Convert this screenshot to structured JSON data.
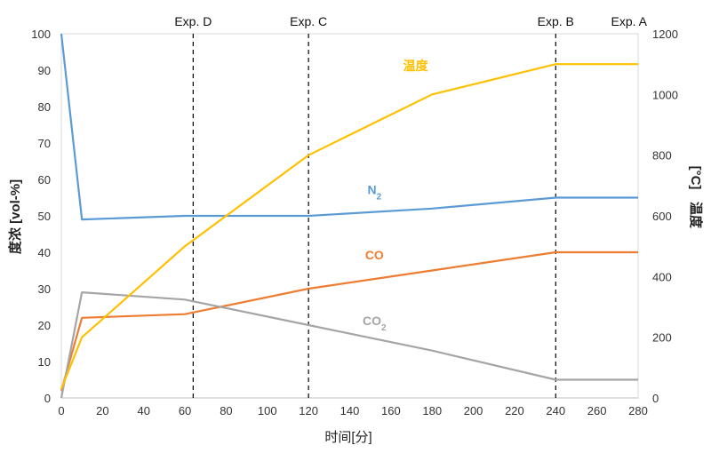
{
  "chart_data": {
    "type": "line",
    "xlabel": "时间[分]",
    "ylabel_left": "度浓 [vol-%]",
    "ylabel_right_unit": "[°C]",
    "ylabel_right_text": "温度",
    "xlim": [
      0,
      280
    ],
    "ylim_left": [
      0,
      100
    ],
    "ylim_right": [
      0,
      1200
    ],
    "x_ticks": [
      0,
      20,
      40,
      60,
      80,
      100,
      120,
      140,
      160,
      180,
      200,
      220,
      240,
      260,
      280
    ],
    "y_left_ticks": [
      0,
      10,
      20,
      30,
      40,
      50,
      60,
      70,
      80,
      90,
      100
    ],
    "y_right_ticks": [
      0,
      200,
      400,
      600,
      800,
      1000,
      1200
    ],
    "grid": false,
    "markers": [
      {
        "label": "Exp. D",
        "x": 64
      },
      {
        "label": "Exp. C",
        "x": 120
      },
      {
        "label": "Exp. B",
        "x": 240
      },
      {
        "label": "Exp. A",
        "x": 280
      }
    ],
    "series": [
      {
        "name": "N",
        "subscript": "2",
        "axis": "left",
        "color": "#5b9bd5",
        "points": [
          [
            0,
            100
          ],
          [
            10,
            49
          ],
          [
            60,
            50
          ],
          [
            120,
            50
          ],
          [
            180,
            52
          ],
          [
            240,
            55
          ],
          [
            280,
            55
          ]
        ]
      },
      {
        "name": "CO",
        "subscript": "",
        "axis": "left",
        "color": "#ed7d31",
        "points": [
          [
            0,
            2
          ],
          [
            10,
            22
          ],
          [
            60,
            23
          ],
          [
            120,
            30
          ],
          [
            180,
            35
          ],
          [
            240,
            40
          ],
          [
            280,
            40
          ]
        ]
      },
      {
        "name": "CO",
        "subscript": "2",
        "axis": "left",
        "color": "#a5a5a5",
        "points": [
          [
            0,
            0
          ],
          [
            10,
            29
          ],
          [
            60,
            27
          ],
          [
            120,
            20
          ],
          [
            180,
            13
          ],
          [
            240,
            5
          ],
          [
            280,
            5
          ]
        ]
      },
      {
        "name": "温度",
        "subscript": "",
        "axis": "right",
        "color": "#ffc000",
        "points": [
          [
            0,
            30
          ],
          [
            10,
            200
          ],
          [
            60,
            500
          ],
          [
            120,
            800
          ],
          [
            180,
            1000
          ],
          [
            240,
            1100
          ],
          [
            280,
            1100
          ]
        ]
      }
    ],
    "series_labels": [
      {
        "series": 3,
        "x": 172,
        "y_left": 90
      },
      {
        "series": 0,
        "x": 152,
        "y_left": 56
      },
      {
        "series": 1,
        "x": 152,
        "y_left": 38
      },
      {
        "series": 2,
        "x": 152,
        "y_left": 20
      }
    ]
  }
}
